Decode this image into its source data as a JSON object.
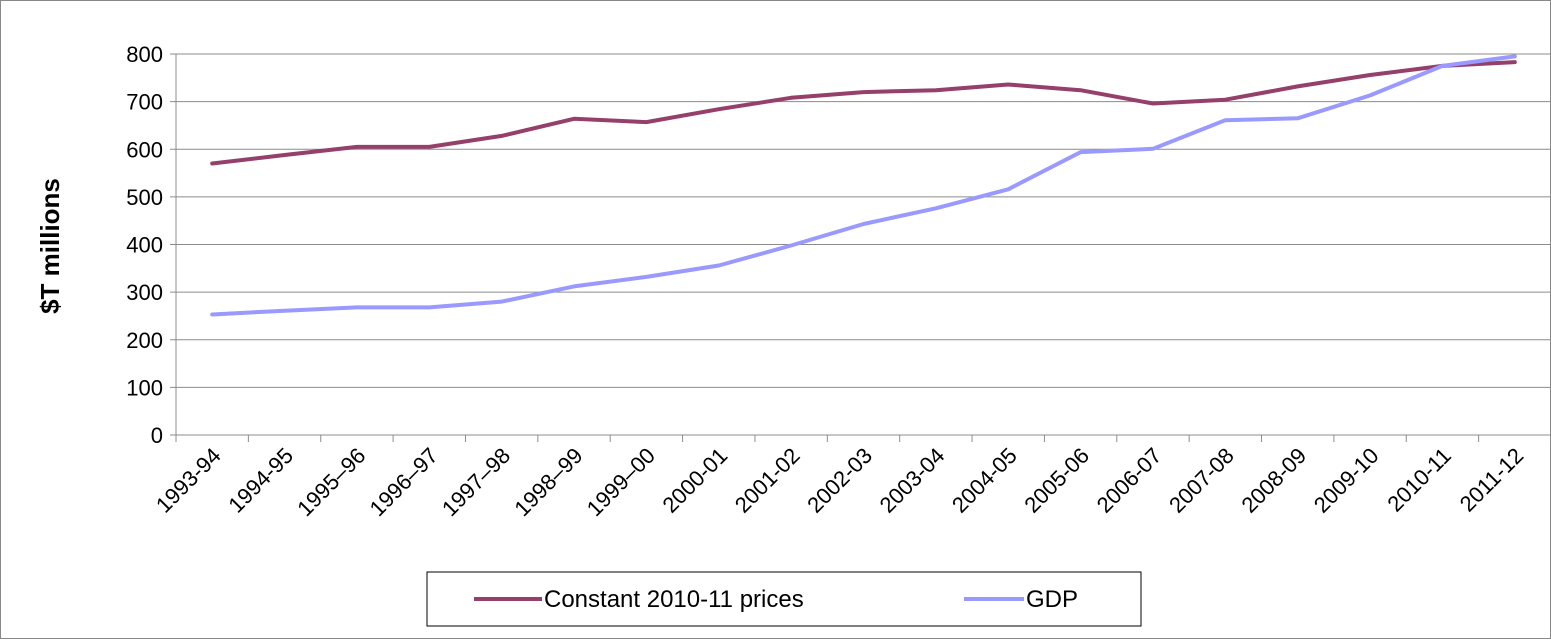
{
  "chart_data": {
    "type": "line",
    "title": "",
    "xlabel": "",
    "ylabel": "$T millions",
    "categories": [
      "1993-94",
      "1994-95",
      "1995–96",
      "1996–97",
      "1997–98",
      "1998–99",
      "1999–00",
      "2000-01",
      "2001-02",
      "2002-03",
      "2003-04",
      "2004-05",
      "2005-06",
      "2006-07",
      "2007-08",
      "2008-09",
      "2009-10",
      "2010-11",
      "2011-12"
    ],
    "ylim": [
      0,
      800
    ],
    "yticks": [
      0,
      100,
      200,
      300,
      400,
      500,
      600,
      700,
      800
    ],
    "grid": "horizontal",
    "legend_position": "bottom",
    "series": [
      {
        "name": "Constant 2010-11 prices",
        "color": "#953F6B",
        "values": [
          570,
          588,
          605,
          605,
          628,
          664,
          657,
          684,
          708,
          720,
          724,
          736,
          724,
          696,
          704,
          732,
          756,
          775,
          783
        ]
      },
      {
        "name": "GDP",
        "color": "#9999FF",
        "values": [
          253,
          261,
          268,
          268,
          280,
          312,
          332,
          356,
          398,
          443,
          476,
          516,
          594,
          601,
          661,
          665,
          713,
          775,
          795
        ]
      }
    ]
  }
}
